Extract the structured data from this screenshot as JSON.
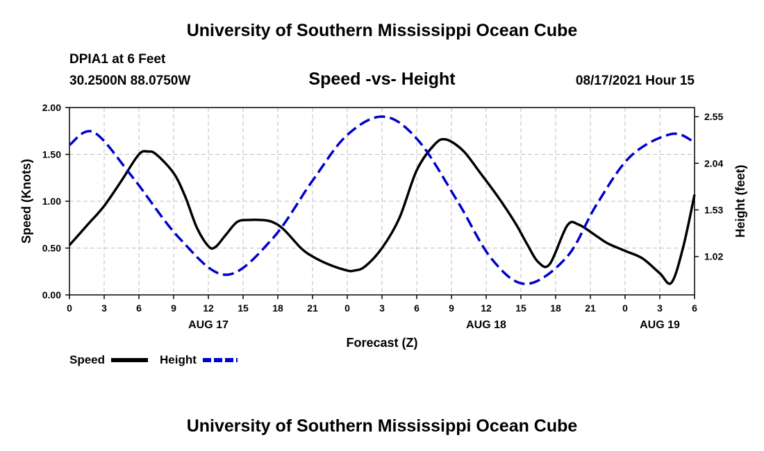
{
  "page": {
    "title_top": "University of Southern Mississippi Ocean Cube",
    "title_bottom": "University of Southern Mississippi Ocean Cube",
    "station": "DPIA1 at 6 Feet",
    "coords": "30.2500N  88.0750W",
    "date_label": "08/17/2021 Hour 15"
  },
  "chart_data": {
    "type": "line",
    "title": "Speed -vs- Height",
    "xlabel": "Forecast (Z)",
    "ylabel": "Speed (Knots)",
    "y2label": "Height (feet)",
    "x_unit": "hours from 08/17 00Z",
    "xlim": [
      0,
      54
    ],
    "ylim": [
      0,
      2.0
    ],
    "y2lim": [
      0.6,
      2.65
    ],
    "grid": true,
    "x_ticks": [
      0,
      3,
      6,
      9,
      12,
      15,
      18,
      21,
      24,
      27,
      30,
      33,
      36,
      39,
      42,
      45,
      48,
      51,
      54
    ],
    "x_tick_labels": [
      "0",
      "3",
      "6",
      "9",
      "12",
      "15",
      "18",
      "21",
      "0",
      "3",
      "6",
      "9",
      "12",
      "15",
      "18",
      "21",
      "0",
      "3",
      "6"
    ],
    "date_labels": [
      {
        "x": 12,
        "label": "AUG 17"
      },
      {
        "x": 36,
        "label": "AUG 18"
      },
      {
        "x": 51,
        "label": "AUG 19"
      }
    ],
    "y_ticks": [
      0,
      0.5,
      1.0,
      1.5,
      2.0
    ],
    "y_tick_labels": [
      "0.00",
      "0.50",
      "1.00",
      "1.50",
      "2.00"
    ],
    "y2_ticks": [
      1.02,
      1.53,
      2.04,
      2.55
    ],
    "y2_tick_labels": [
      "1.02",
      "1.53",
      "2.04",
      "2.55"
    ],
    "series": [
      {
        "name": "Speed",
        "axis": "left",
        "color": "#000000",
        "style": "solid",
        "x": [
          0,
          1.5,
          3,
          4.5,
          6,
          6.8,
          7.5,
          9,
          10,
          11,
          12,
          12.6,
          13.5,
          14.5,
          15.5,
          16.5,
          17.5,
          18.5,
          20,
          21,
          22.5,
          24,
          24.6,
          25.5,
          27,
          28.5,
          30,
          31.5,
          32.5,
          34,
          35.5,
          37,
          38.5,
          39.5,
          40.5,
          41.5,
          43,
          44,
          45.5,
          46.5,
          48,
          49.5,
          51,
          52,
          53,
          54
        ],
        "y": [
          0.53,
          0.74,
          0.95,
          1.22,
          1.5,
          1.53,
          1.5,
          1.3,
          1.05,
          0.72,
          0.52,
          0.51,
          0.64,
          0.78,
          0.8,
          0.8,
          0.78,
          0.7,
          0.5,
          0.41,
          0.32,
          0.26,
          0.26,
          0.3,
          0.5,
          0.82,
          1.33,
          1.6,
          1.66,
          1.54,
          1.3,
          1.05,
          0.77,
          0.55,
          0.35,
          0.33,
          0.74,
          0.75,
          0.63,
          0.55,
          0.47,
          0.39,
          0.23,
          0.13,
          0.5,
          1.07
        ]
      },
      {
        "name": "Height",
        "axis": "right",
        "color": "#0000cc",
        "style": "dashed",
        "x": [
          0,
          2.1,
          5.5,
          9.5,
          13.5,
          17.5,
          21,
          24,
          27.2,
          30.2,
          33.5,
          36.5,
          39.5,
          43,
          45.5,
          48.5,
          52,
          54
        ],
        "y": [
          2.24,
          2.38,
          1.88,
          1.22,
          0.82,
          1.21,
          1.85,
          2.35,
          2.55,
          2.28,
          1.63,
          0.99,
          0.72,
          1.02,
          1.58,
          2.12,
          2.36,
          2.27
        ]
      }
    ]
  },
  "legend": {
    "speed_label": "Speed",
    "height_label": "Height"
  }
}
